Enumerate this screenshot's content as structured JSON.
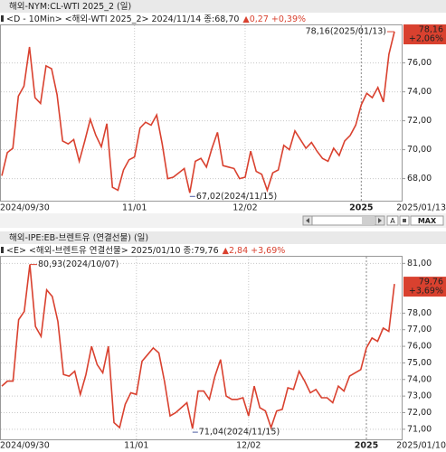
{
  "chart_data": [
    {
      "type": "line",
      "title": "해외-NYM:CL-WTI 2025_2 (일)",
      "subtitle": "<D - 10Min> <해외-WTI 2025_2> 2024/11/14 종:68,70",
      "subtitle_change": "▲0,27 +0,39%",
      "categories": [
        "2024/09/30",
        null,
        null,
        null,
        null,
        null,
        null,
        null,
        null,
        null,
        null,
        null,
        null,
        null,
        null,
        null,
        null,
        null,
        null,
        null,
        null,
        null,
        null,
        null,
        "11/01",
        null,
        null,
        null,
        null,
        null,
        null,
        null,
        null,
        null,
        null,
        null,
        null,
        null,
        null,
        null,
        null,
        null,
        null,
        null,
        "12/02",
        null,
        null,
        null,
        null,
        null,
        null,
        null,
        null,
        null,
        null,
        null,
        null,
        null,
        null,
        null,
        null,
        null,
        null,
        null,
        null,
        "2025",
        null,
        null,
        null,
        null,
        null,
        "2025/01/13"
      ],
      "series": [
        {
          "name": "WTI",
          "color": "#d9412f",
          "values": [
            68.2,
            69.8,
            70.1,
            73.7,
            74.4,
            77.1,
            73.6,
            73.2,
            75.8,
            75.6,
            73.8,
            70.6,
            70.4,
            70.7,
            69.2,
            70.6,
            72.1,
            71.0,
            70.2,
            71.8,
            67.4,
            67.2,
            68.6,
            69.3,
            69.5,
            71.5,
            71.9,
            71.7,
            72.4,
            70.4,
            68.0,
            68.1,
            68.4,
            68.7,
            67.02,
            69.2,
            69.4,
            68.8,
            70.1,
            71.2,
            68.9,
            68.8,
            68.7,
            68.0,
            68.1,
            69.9,
            68.5,
            68.3,
            67.2,
            68.4,
            68.6,
            70.3,
            70.0,
            71.3,
            70.7,
            70.1,
            70.5,
            69.9,
            69.4,
            69.2,
            70.1,
            69.6,
            70.6,
            70.99,
            71.7,
            73.1,
            73.9,
            73.6,
            74.3,
            73.3,
            76.6,
            78.16
          ]
        }
      ],
      "ylim": [
        66.6,
        78.6
      ],
      "yticks": [
        {
          "value": 68,
          "label": "68,00"
        },
        {
          "value": 70,
          "label": "70,00"
        },
        {
          "value": 72,
          "label": "72,00"
        },
        {
          "value": 74,
          "label": "74,00"
        },
        {
          "value": 76,
          "label": "76,00"
        }
      ],
      "annotations": [
        {
          "value": 78.16,
          "label": "78,16(2025/01/13)"
        },
        {
          "value": 67.02,
          "label": "67,02(2024/11/15)"
        }
      ],
      "last_label": "78,16",
      "last_change": "+2,06%",
      "grid": true
    },
    {
      "type": "line",
      "title": "해외-IPE:EB-브렌트유 (연결선물) (일)",
      "subtitle": "<E> <해외-브렌트유 연결선물> 2025/01/10 종:79,76",
      "subtitle_change": "▲2,84 +3,69%",
      "categories": [
        "2024/09/30",
        null,
        null,
        null,
        null,
        null,
        null,
        null,
        null,
        null,
        null,
        null,
        null,
        null,
        null,
        null,
        null,
        null,
        null,
        null,
        null,
        null,
        null,
        null,
        "11/01",
        null,
        null,
        null,
        null,
        null,
        null,
        null,
        null,
        null,
        null,
        null,
        null,
        null,
        null,
        null,
        null,
        null,
        null,
        null,
        "12/02",
        null,
        null,
        null,
        null,
        null,
        null,
        null,
        null,
        null,
        null,
        null,
        null,
        null,
        null,
        null,
        null,
        null,
        null,
        null,
        null,
        "2025",
        null,
        null,
        null,
        null,
        "2025/01/10"
      ],
      "series": [
        {
          "name": "Brent",
          "color": "#d9412f",
          "values": [
            73.6,
            73.9,
            73.9,
            77.6,
            78.1,
            80.93,
            77.2,
            76.6,
            79.4,
            79.0,
            77.5,
            74.3,
            74.2,
            74.5,
            73.1,
            74.3,
            76.0,
            74.9,
            74.4,
            76.0,
            71.4,
            71.1,
            72.5,
            73.2,
            73.1,
            75.1,
            75.5,
            75.9,
            75.6,
            73.9,
            71.8,
            72.0,
            72.3,
            72.6,
            71.04,
            73.3,
            73.3,
            72.8,
            74.2,
            75.2,
            73.0,
            72.8,
            72.8,
            72.9,
            71.8,
            73.6,
            72.3,
            72.1,
            71.1,
            72.1,
            72.2,
            73.5,
            73.4,
            74.5,
            73.9,
            73.2,
            73.4,
            72.9,
            72.9,
            72.6,
            73.6,
            73.3,
            74.2,
            74.4,
            74.6,
            75.9,
            76.5,
            76.3,
            77.1,
            76.9,
            79.76
          ]
        }
      ],
      "ylim": [
        70.5,
        81.4
      ],
      "yticks": [
        {
          "value": 71,
          "label": "71,00"
        },
        {
          "value": 72,
          "label": "72,00"
        },
        {
          "value": 73,
          "label": "73,00"
        },
        {
          "value": 74,
          "label": "74,00"
        },
        {
          "value": 75,
          "label": "75,00"
        },
        {
          "value": 76,
          "label": "76,00"
        },
        {
          "value": 77,
          "label": "77,00"
        },
        {
          "value": 78,
          "label": "78,00"
        },
        {
          "value": 81,
          "label": "81,00"
        }
      ],
      "annotations": [
        {
          "value": 80.93,
          "label": "80,93(2024/10/07)"
        },
        {
          "value": 71.04,
          "label": "71,04(2024/11/15)"
        }
      ],
      "last_label": "79,76",
      "last_change": "+3,69%",
      "grid": true
    }
  ],
  "toolbar": {
    "buttons": [
      "A",
      "MAX"
    ]
  }
}
